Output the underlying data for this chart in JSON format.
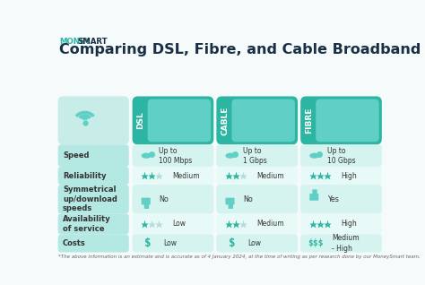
{
  "main_title": "Comparing DSL, Fibre, and Cable Broadband",
  "columns": [
    "DSL",
    "CABLE",
    "FIBRE"
  ],
  "rows": [
    "Speed",
    "Reliability",
    "Symmetrical\nup/download\nspeeds",
    "Availability\nof service",
    "Costs"
  ],
  "speed_values": [
    "Up to\n100 Mbps",
    "Up to\n1 Gbps",
    "Up to\n10 Gbps"
  ],
  "reliability_values": [
    "Medium",
    "Medium",
    "High"
  ],
  "reliability_stars": [
    2,
    2,
    3
  ],
  "sym_values": [
    "No",
    "No",
    "Yes"
  ],
  "avail_values": [
    "Low",
    "Medium",
    "High"
  ],
  "avail_stars": [
    1,
    2,
    3
  ],
  "cost_symbols": [
    "$",
    "$",
    "$$$"
  ],
  "cost_values": [
    "Low",
    "Low",
    "Medium\n- High"
  ],
  "footnote": "*The above information is an estimate and is accurate as of 4 January 2024, at the time of writing as per research done by our MoneySmart team.",
  "bg_color": "#f5fafa",
  "teal_dark": "#2cb5a2",
  "teal_header": "#3abfac",
  "teal_mid": "#60cfc5",
  "teal_light": "#9dddd7",
  "teal_row_label": "#b4e8e2",
  "teal_row_even": "#d5f3ef",
  "teal_row_odd": "#e8faf8",
  "teal_header_area": "#c8ede8",
  "money_color": "#2cb5a2",
  "smart_color": "#1a2e44",
  "title_color": "#1a2e44",
  "text_color": "#333333",
  "star_filled": "#2cb5a2",
  "star_empty": "#b4ddd8"
}
